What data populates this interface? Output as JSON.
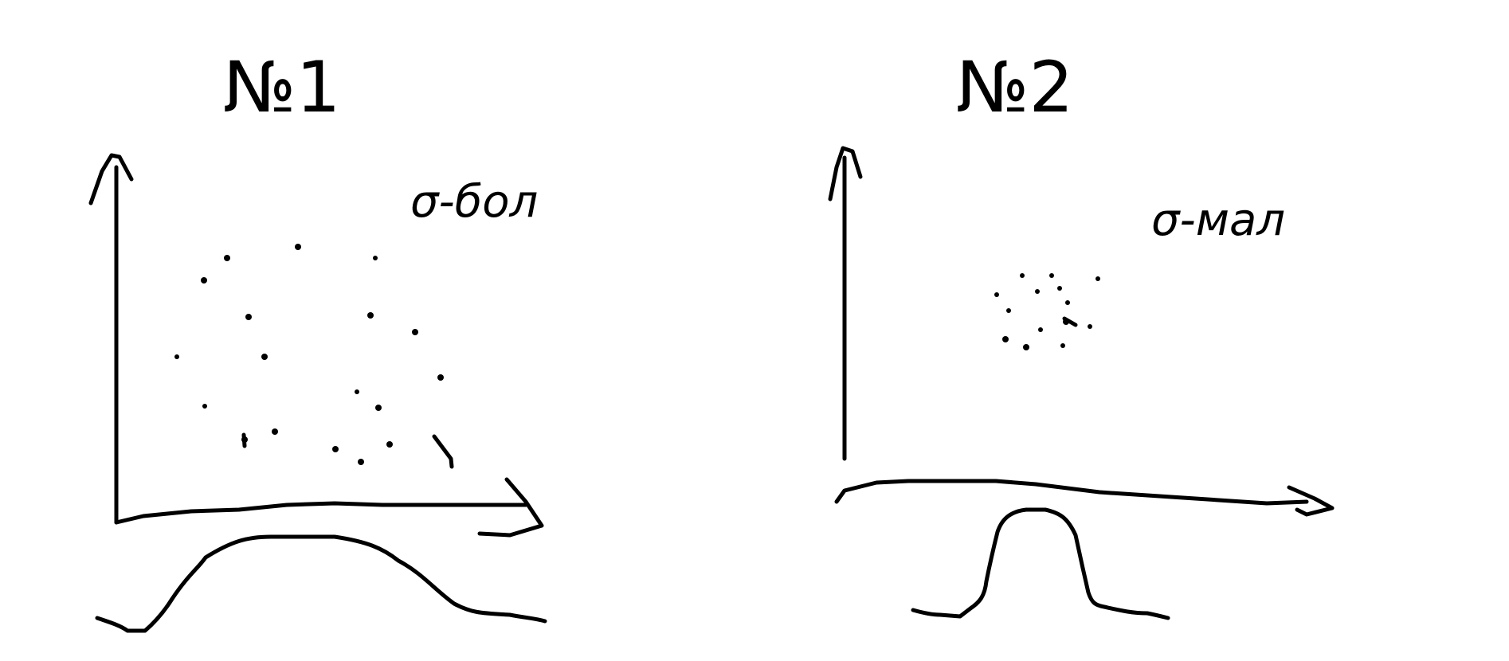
{
  "panels": [
    {
      "title": "№1",
      "note": "σ-бол",
      "spread": "wide"
    },
    {
      "title": "№2",
      "note": "σ-мал",
      "spread": "narrow"
    }
  ],
  "colors": {
    "ink": "#000000",
    "background": "#ffffff"
  }
}
